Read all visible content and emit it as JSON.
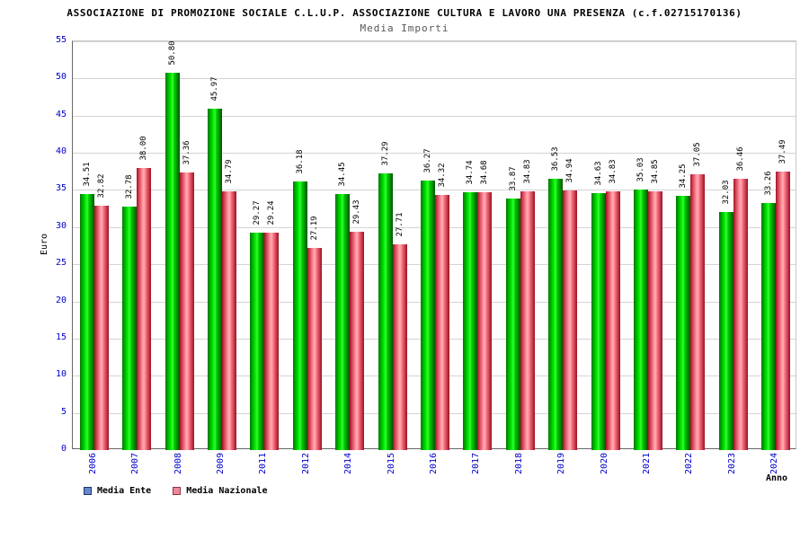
{
  "chart_data": {
    "type": "bar",
    "title": "ASSOCIAZIONE DI PROMOZIONE SOCIALE C.L.U.P. ASSOCIAZIONE CULTURA E LAVORO UNA PRESENZA (c.f.02715170136)",
    "subtitle": "Media Importi",
    "xlabel": "Anno",
    "ylabel": "Euro",
    "ylim": [
      0,
      55
    ],
    "ytick_step": 5,
    "grid": true,
    "legend_position": "bottom-left",
    "value_label_decimals": 2,
    "categories": [
      "2006",
      "2007",
      "2008",
      "2009",
      "2011",
      "2012",
      "2014",
      "2015",
      "2016",
      "2017",
      "2018",
      "2019",
      "2020",
      "2021",
      "2022",
      "2023",
      "2024"
    ],
    "series": [
      {
        "name": "Media Ente",
        "bar_color": "#00dd00",
        "legend_color": "#6688cc",
        "legend_border": "#223366",
        "values": [
          34.51,
          32.78,
          50.8,
          45.97,
          29.27,
          36.18,
          34.45,
          37.29,
          36.27,
          34.74,
          33.87,
          36.53,
          34.63,
          35.03,
          34.25,
          32.03,
          33.26
        ]
      },
      {
        "name": "Media Nazionale",
        "bar_color": "#ff6666",
        "legend_color": "#ee8899",
        "legend_border": "#883344",
        "values": [
          32.82,
          38.0,
          37.36,
          34.79,
          29.24,
          27.19,
          29.43,
          27.71,
          34.32,
          34.68,
          34.83,
          34.94,
          34.83,
          34.85,
          37.05,
          36.46,
          37.49
        ]
      }
    ],
    "axis_label_color": "#0000cc",
    "gridline_color": "#d4d4d4"
  }
}
